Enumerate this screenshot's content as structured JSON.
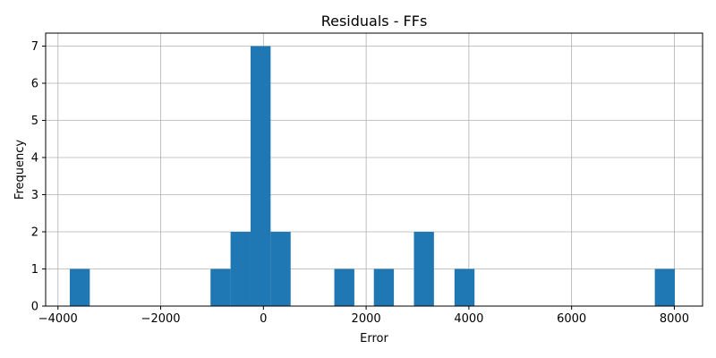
{
  "chart_data": {
    "type": "bar",
    "title": "Residuals - FFs",
    "xlabel": "Error",
    "ylabel": "Frequency",
    "xlim": [
      -4240,
      8550
    ],
    "ylim": [
      0,
      7.35
    ],
    "grid": true,
    "bar_color": "#1f77b4",
    "x_ticks": [
      -4000,
      -2000,
      0,
      2000,
      4000,
      6000,
      8000
    ],
    "x_tick_labels": [
      "−4000",
      "−2000",
      "0",
      "2000",
      "4000",
      "6000",
      "8000"
    ],
    "y_ticks": [
      0,
      1,
      2,
      3,
      4,
      5,
      6,
      7
    ],
    "y_tick_labels": [
      "0",
      "1",
      "2",
      "3",
      "4",
      "5",
      "6",
      "7"
    ],
    "bins": [
      {
        "x0": -3770,
        "x1": -3380,
        "count": 1
      },
      {
        "x0": -1030,
        "x1": -640,
        "count": 1
      },
      {
        "x0": -640,
        "x1": -250,
        "count": 2
      },
      {
        "x0": -250,
        "x1": 140,
        "count": 7
      },
      {
        "x0": 140,
        "x1": 530,
        "count": 2
      },
      {
        "x0": 1380,
        "x1": 1770,
        "count": 1
      },
      {
        "x0": 2150,
        "x1": 2540,
        "count": 1
      },
      {
        "x0": 2930,
        "x1": 3320,
        "count": 2
      },
      {
        "x0": 3720,
        "x1": 4110,
        "count": 1
      },
      {
        "x0": 7620,
        "x1": 8010,
        "count": 1
      }
    ]
  }
}
